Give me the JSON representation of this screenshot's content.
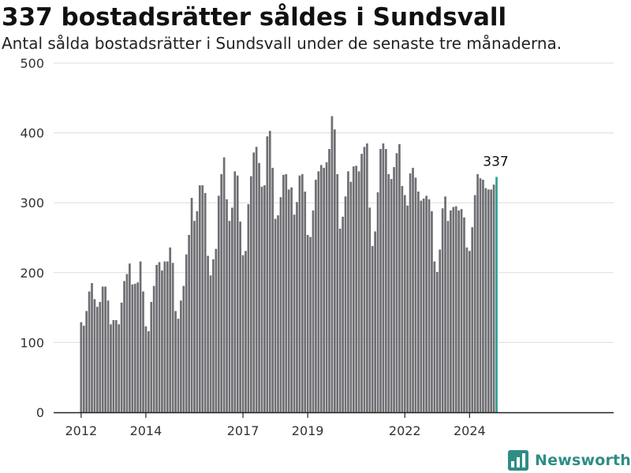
{
  "title": "337 bostadsrätter såldes i Sundsvall",
  "subtitle": "Antal sålda bostadsrätter i Sundsvall under de senaste tre månaderna.",
  "brand": {
    "name": "Newsworthy",
    "color": "#2f8d86"
  },
  "chart_data": {
    "type": "bar",
    "title": "337 bostadsrätter såldes i Sundsvall",
    "subtitle": "Antal sålda bostadsrätter i Sundsvall under de senaste tre månaderna.",
    "xlabel": "",
    "ylabel": "",
    "ylim": [
      0,
      500
    ],
    "yticks": [
      0,
      100,
      200,
      300,
      400,
      500
    ],
    "xticks": [
      "2012",
      "2014",
      "2017",
      "2019",
      "2022",
      "2024"
    ],
    "grid": true,
    "legend": "none",
    "bar_color": "#6f6e73",
    "highlight_color": "#2f9e92",
    "highlight_label": "337",
    "start_period": "2012-01",
    "values": [
      129,
      124,
      145,
      173,
      185,
      162,
      151,
      158,
      180,
      180,
      160,
      126,
      132,
      132,
      126,
      157,
      188,
      198,
      213,
      183,
      184,
      186,
      216,
      173,
      123,
      116,
      158,
      181,
      211,
      215,
      203,
      216,
      216,
      236,
      214,
      145,
      134,
      160,
      181,
      226,
      254,
      307,
      274,
      288,
      325,
      325,
      314,
      224,
      196,
      219,
      234,
      310,
      341,
      365,
      305,
      274,
      293,
      345,
      339,
      273,
      225,
      231,
      298,
      338,
      372,
      380,
      357,
      323,
      325,
      395,
      403,
      350,
      277,
      282,
      308,
      340,
      341,
      319,
      322,
      283,
      301,
      339,
      341,
      316,
      254,
      251,
      289,
      333,
      345,
      354,
      350,
      358,
      377,
      424,
      405,
      341,
      263,
      280,
      309,
      345,
      330,
      352,
      353,
      345,
      370,
      380,
      385,
      293,
      238,
      259,
      315,
      377,
      385,
      377,
      341,
      334,
      351,
      371,
      384,
      324,
      311,
      296,
      342,
      350,
      336,
      316,
      303,
      306,
      310,
      305,
      288,
      216,
      201,
      233,
      292,
      309,
      274,
      289,
      294,
      295,
      289,
      291,
      279,
      236,
      231,
      265,
      311,
      341,
      335,
      333,
      321,
      319,
      319,
      326,
      337
    ]
  }
}
